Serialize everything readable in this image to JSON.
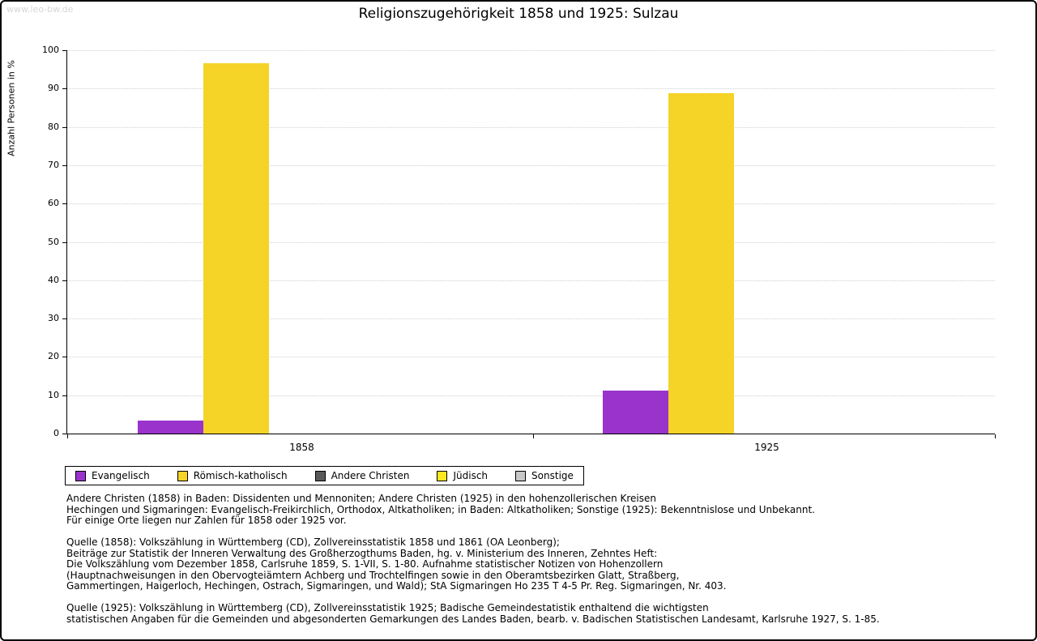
{
  "page": {
    "watermark": "www.leo-bw.de",
    "title": "Religionszugehörigkeit 1858 und 1925: Sulzau"
  },
  "chart_data": {
    "type": "bar",
    "title": "Religionszugehörigkeit 1858 und 1925: Sulzau",
    "xlabel": "",
    "ylabel": "Anzahl Personen in %",
    "ylim": [
      0,
      100
    ],
    "ytick_interval": 10,
    "grid": "dotted-horizontal",
    "legend_position": "below-left",
    "unit": "%",
    "categories": [
      "Evangelisch",
      "Römisch-katholisch",
      "Andere Christen",
      "Jüdisch",
      "Sonstige"
    ],
    "colors": [
      "#9933cc",
      "#f5d327",
      "#595959",
      "#ffe822",
      "#c8c8c8"
    ],
    "x_groups": [
      "1858",
      "1925"
    ],
    "series": [
      {
        "name": "1858",
        "values": [
          3.4,
          96.6,
          0,
          0,
          0
        ]
      },
      {
        "name": "1925",
        "values": [
          11.2,
          88.9,
          0,
          0,
          0
        ]
      }
    ]
  },
  "footnotes": {
    "lines": [
      "Andere Christen (1858) in Baden: Dissidenten und Mennoniten; Andere Christen (1925) in den hohenzollerischen Kreisen",
      "Hechingen und Sigmaringen: Evangelisch-Freikirchlich, Orthodox, Altkatholiken; in Baden: Altkatholiken; Sonstige (1925): Bekenntnislose und Unbekannt.",
      "Für einige Orte liegen nur Zahlen für 1858 oder 1925 vor.",
      "",
      "Quelle (1858): Volkszählung in Württemberg (CD), Zollvereinsstatistik 1858 und 1861 (OA Leonberg);",
      "Beiträge zur Statistik der Inneren Verwaltung des Großherzogthums Baden, hg. v. Ministerium des Inneren, Zehntes Heft:",
      "Die Volkszählung vom Dezember 1858, Carlsruhe 1859, S. 1-VII, S. 1-80. Aufnahme statistischer Notizen von Hohenzollern",
      "(Hauptnachweisungen in den Obervogteiämtern Achberg und Trochtelfingen sowie in den Oberamtsbezirken Glatt, Straßberg,",
      "Gammertingen, Haigerloch, Hechingen, Ostrach, Sigmaringen, und Wald); StA Sigmaringen Ho 235 T 4-5 Pr. Reg. Sigmaringen, Nr. 403.",
      "",
      "Quelle (1925): Volkszählung in Württemberg (CD), Zollvereinsstatistik 1925; Badische Gemeindestatistik enthaltend die wichtigsten",
      "statistischen Angaben für die Gemeinden und abgesonderten Gemarkungen des Landes Baden, bearb. v. Badischen Statistischen Landesamt, Karlsruhe 1927, S. 1-85."
    ]
  }
}
